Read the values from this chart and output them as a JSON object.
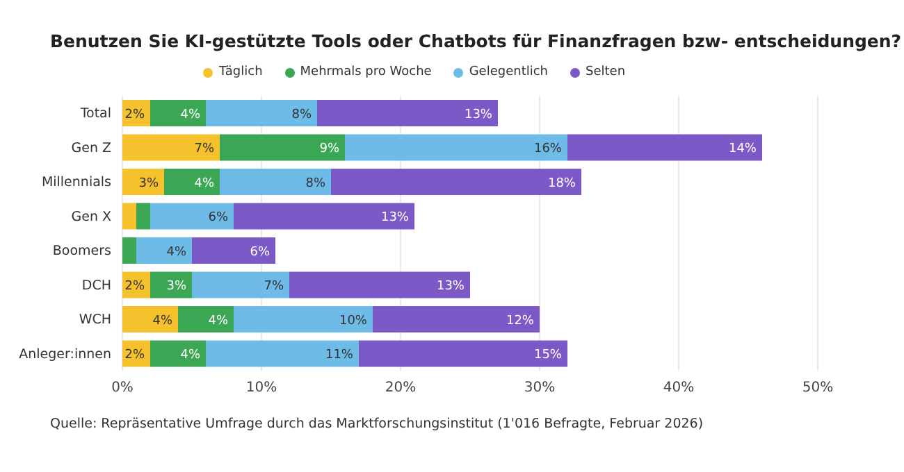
{
  "chart_data": {
    "type": "bar",
    "orientation": "horizontal",
    "stacked": true,
    "title": "Benutzen Sie KI-gestützte Tools oder Chatbots für Finanzfragen bzw- entscheidungen?",
    "categories": [
      "Total",
      "Gen Z",
      "Millennials",
      "Gen X",
      "Boomers",
      "DCH",
      "WCH",
      "Anleger:innen"
    ],
    "series": [
      {
        "name": "Täglich",
        "color": "#f5c22e",
        "values": [
          2,
          7,
          3,
          1,
          0,
          2,
          4,
          2
        ],
        "value_labels": [
          "2%",
          "7%",
          "3%",
          null,
          null,
          "2%",
          "4%",
          "2%"
        ]
      },
      {
        "name": "Mehrmals pro Woche",
        "color": "#3ba654",
        "values": [
          4,
          9,
          4,
          1,
          1,
          3,
          4,
          4
        ],
        "value_labels": [
          "4%",
          "9%",
          "4%",
          null,
          null,
          "3%",
          "4%",
          "4%"
        ]
      },
      {
        "name": "Gelegentlich",
        "color": "#6fbbe8",
        "values": [
          8,
          16,
          8,
          6,
          4,
          7,
          10,
          11
        ],
        "value_labels": [
          "8%",
          "16%",
          "8%",
          "6%",
          "4%",
          "7%",
          "10%",
          "11%"
        ]
      },
      {
        "name": "Selten",
        "color": "#7b59c6",
        "values": [
          13,
          14,
          18,
          13,
          6,
          13,
          12,
          15
        ],
        "value_labels": [
          "13%",
          "14%",
          "18%",
          "13%",
          "6%",
          "13%",
          "12%",
          "15%"
        ]
      }
    ],
    "xlim": [
      0,
      50
    ],
    "xticks": [
      {
        "value": 0,
        "label": "0%"
      },
      {
        "value": 10,
        "label": "10%"
      },
      {
        "value": 20,
        "label": "20%"
      },
      {
        "value": 30,
        "label": "30%"
      },
      {
        "value": 40,
        "label": "40%"
      },
      {
        "value": 50,
        "label": "50%"
      }
    ],
    "grid": "x",
    "legend": "top",
    "annotations": [
      "Quelle: Repräsentative Umfrage durch das Marktforschungsinstitut (1'016 Befragte, Februar 2026)"
    ]
  }
}
